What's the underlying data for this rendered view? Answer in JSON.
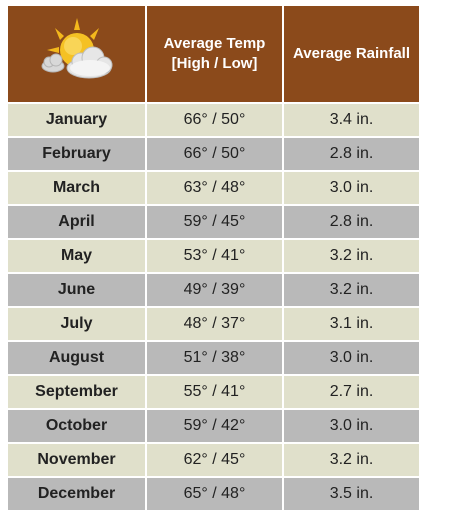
{
  "header": {
    "temp_line1": "Average Temp",
    "temp_line2": "[High / Low]",
    "rain": "Average Rainfall",
    "icon": "sun-cloud-icon"
  },
  "rows": [
    {
      "month": "January",
      "temp": "66° / 50°",
      "rain": "3.4 in."
    },
    {
      "month": "February",
      "temp": "66° / 50°",
      "rain": "2.8 in."
    },
    {
      "month": "March",
      "temp": "63° / 48°",
      "rain": "3.0 in."
    },
    {
      "month": "April",
      "temp": "59° / 45°",
      "rain": "2.8 in."
    },
    {
      "month": "May",
      "temp": "53° / 41°",
      "rain": "3.2 in."
    },
    {
      "month": "June",
      "temp": "49° / 39°",
      "rain": "3.2 in."
    },
    {
      "month": "July",
      "temp": "48° / 37°",
      "rain": "3.1 in."
    },
    {
      "month": "August",
      "temp": "51° / 38°",
      "rain": "3.0 in."
    },
    {
      "month": "September",
      "temp": "55° / 41°",
      "rain": "2.7 in."
    },
    {
      "month": "October",
      "temp": "59° / 42°",
      "rain": "3.0 in."
    },
    {
      "month": "November",
      "temp": "62° / 45°",
      "rain": "3.2 in."
    },
    {
      "month": "December",
      "temp": "65° / 48°",
      "rain": "3.5 in."
    }
  ],
  "colors": {
    "header_bg": "#8b4a1b",
    "row_light": "#e0e0cb",
    "row_dark": "#b9b9b9"
  }
}
